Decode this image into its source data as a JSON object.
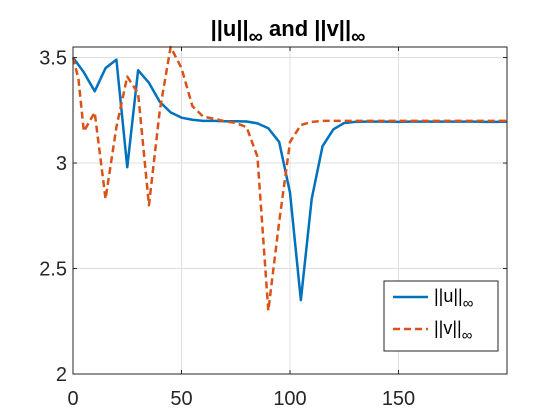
{
  "chart_data": {
    "type": "line",
    "title": "||u||∞ and ||v||∞",
    "xlabel": "",
    "ylabel": "",
    "xlim": [
      0,
      200
    ],
    "ylim": [
      2,
      3.55
    ],
    "xticks": [
      0,
      50,
      100,
      150
    ],
    "yticks": [
      2,
      2.5,
      3,
      3.5
    ],
    "xtick_labels": [
      "0",
      "50",
      "100",
      "150"
    ],
    "ytick_labels": [
      "2",
      "2.5",
      "3",
      "3.5"
    ],
    "grid": true,
    "legend_position": "bottom-right",
    "series": [
      {
        "name": "||u||∞",
        "color": "#0072BD",
        "dash": "solid",
        "x": [
          0,
          5,
          10,
          15,
          20,
          25,
          30,
          35,
          40,
          45,
          50,
          55,
          60,
          65,
          70,
          75,
          80,
          85,
          90,
          95,
          100,
          105,
          110,
          115,
          120,
          125,
          130,
          135,
          140,
          145,
          150,
          155,
          160,
          165,
          170,
          175,
          180,
          185,
          190,
          195,
          200
        ],
        "y": [
          3.5,
          3.43,
          3.34,
          3.45,
          3.49,
          2.98,
          3.44,
          3.38,
          3.29,
          3.24,
          3.215,
          3.205,
          3.2,
          3.2,
          3.198,
          3.198,
          3.197,
          3.188,
          3.165,
          3.1,
          2.86,
          2.35,
          2.83,
          3.08,
          3.16,
          3.19,
          3.195,
          3.196,
          3.196,
          3.196,
          3.195,
          3.196,
          3.196,
          3.196,
          3.196,
          3.196,
          3.196,
          3.196,
          3.195,
          3.195,
          3.196
        ]
      },
      {
        "name": "||v||∞",
        "color": "#D95319",
        "dash": "dashed",
        "x": [
          0,
          2.5,
          5,
          10,
          15,
          20,
          25,
          30,
          35,
          40,
          45,
          50,
          55,
          60,
          65,
          70,
          75,
          80,
          85,
          90,
          95,
          100,
          105,
          110,
          115,
          120,
          125,
          130,
          135,
          140,
          145,
          150,
          155,
          160,
          165,
          170,
          175,
          180,
          185,
          190,
          195,
          200
        ],
        "y": [
          3.5,
          3.4,
          3.15,
          3.24,
          2.83,
          3.17,
          3.41,
          3.33,
          2.8,
          3.25,
          3.55,
          3.45,
          3.27,
          3.22,
          3.21,
          3.198,
          3.19,
          3.17,
          3.03,
          2.3,
          2.72,
          3.1,
          3.18,
          3.195,
          3.2,
          3.2,
          3.2,
          3.2,
          3.2,
          3.2,
          3.2,
          3.2,
          3.2,
          3.2,
          3.2,
          3.2,
          3.2,
          3.2,
          3.2,
          3.2,
          3.2,
          3.2
        ]
      }
    ]
  }
}
